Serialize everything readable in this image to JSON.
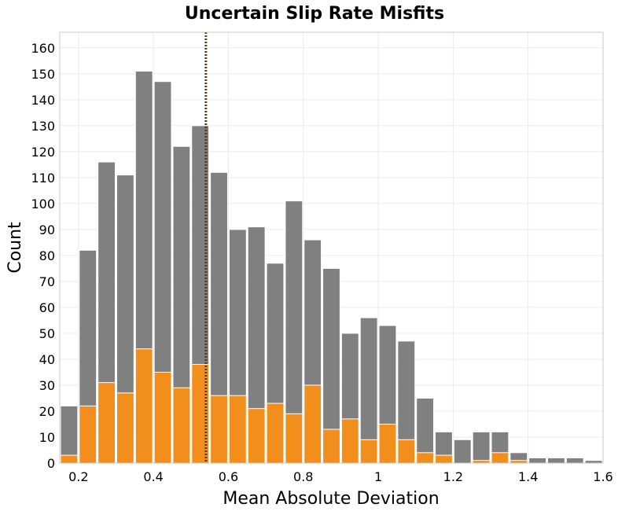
{
  "chart_data": {
    "type": "bar",
    "title": "Uncertain Slip Rate Misfits",
    "xlabel": "Mean Absolute Deviation",
    "ylabel": "Count",
    "xlim": [
      0.15,
      1.6
    ],
    "ylim": [
      0,
      166
    ],
    "x_ticks": [
      "0.2",
      "0.4",
      "0.6",
      "0.8",
      "1",
      "1.2",
      "1.4",
      "1.6"
    ],
    "y_ticks": [
      "0",
      "10",
      "20",
      "30",
      "40",
      "50",
      "60",
      "70",
      "80",
      "90",
      "100",
      "110",
      "120",
      "130",
      "140",
      "150",
      "160"
    ],
    "grid": true,
    "bin_width": 0.05,
    "bin_starts": [
      0.15,
      0.2,
      0.25,
      0.3,
      0.35,
      0.4,
      0.45,
      0.5,
      0.55,
      0.6,
      0.65,
      0.7,
      0.75,
      0.8,
      0.85,
      0.9,
      0.95,
      1.0,
      1.05,
      1.1,
      1.15,
      1.2,
      1.25,
      1.3,
      1.35,
      1.4,
      1.45,
      1.5,
      1.55
    ],
    "series": [
      {
        "color": "#808080",
        "values": [
          22,
          82,
          116,
          111,
          151,
          147,
          122,
          130,
          112,
          90,
          91,
          77,
          101,
          86,
          75,
          50,
          56,
          53,
          47,
          25,
          12,
          9,
          12,
          12,
          4,
          2,
          2,
          2,
          1
        ]
      },
      {
        "color": "#f28e1c",
        "values": [
          3,
          22,
          31,
          27,
          44,
          35,
          29,
          38,
          26,
          26,
          21,
          23,
          19,
          30,
          13,
          17,
          9,
          15,
          9,
          4,
          3,
          0,
          1,
          4,
          1,
          0,
          0,
          0,
          0
        ]
      }
    ],
    "reference_line": {
      "x": 0.54,
      "color": "#5a3a1e",
      "style": "dotted"
    }
  }
}
